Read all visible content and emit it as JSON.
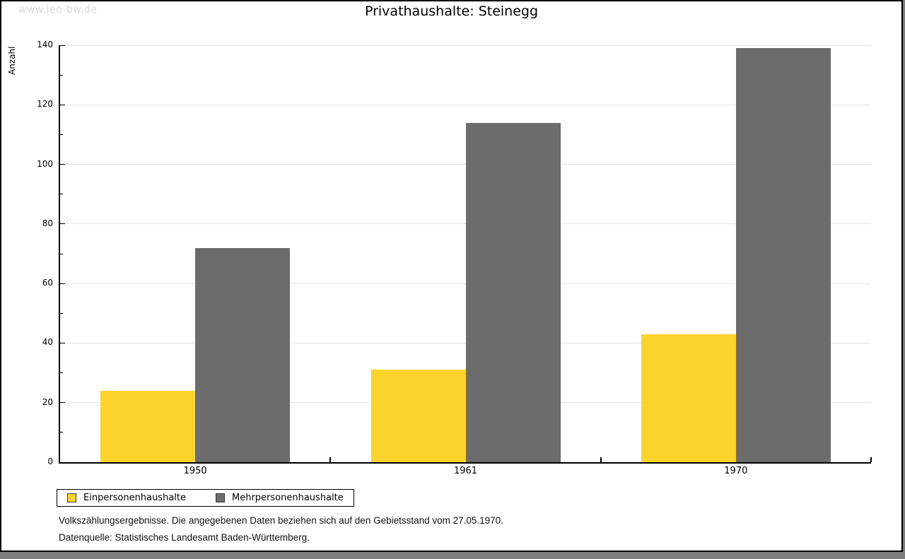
{
  "page": {
    "watermark": "www.leo-bw.de",
    "background_color": "#7d7d7d",
    "card_color": "#ffffff"
  },
  "chart_data": {
    "type": "bar",
    "title": "Privathaushalte: Steinegg",
    "categories": [
      "1950",
      "1961",
      "1970"
    ],
    "series": [
      {
        "name": "Einpersonenhaushalte",
        "color": "#FCD32B",
        "values": [
          24,
          31,
          43
        ]
      },
      {
        "name": "Mehrpersonenhaushalte",
        "color": "#6C6C6C",
        "values": [
          72,
          114,
          139
        ]
      }
    ],
    "xlabel": "",
    "ylabel": "Anzahl",
    "ylim": [
      0,
      140
    ],
    "ytick_major": 20,
    "ytick_minor": 10,
    "grid": "horizontal-major",
    "gridline_color": "#e5e5e5",
    "legend_position": "bottom-left"
  },
  "footer": {
    "line1": "Volkszählungsergebnisse. Die angegebenen Daten beziehen sich auf den Gebietsstand vom 27.05.1970.",
    "line2": "Datenquelle: Statistisches Landesamt Baden-Württemberg."
  }
}
